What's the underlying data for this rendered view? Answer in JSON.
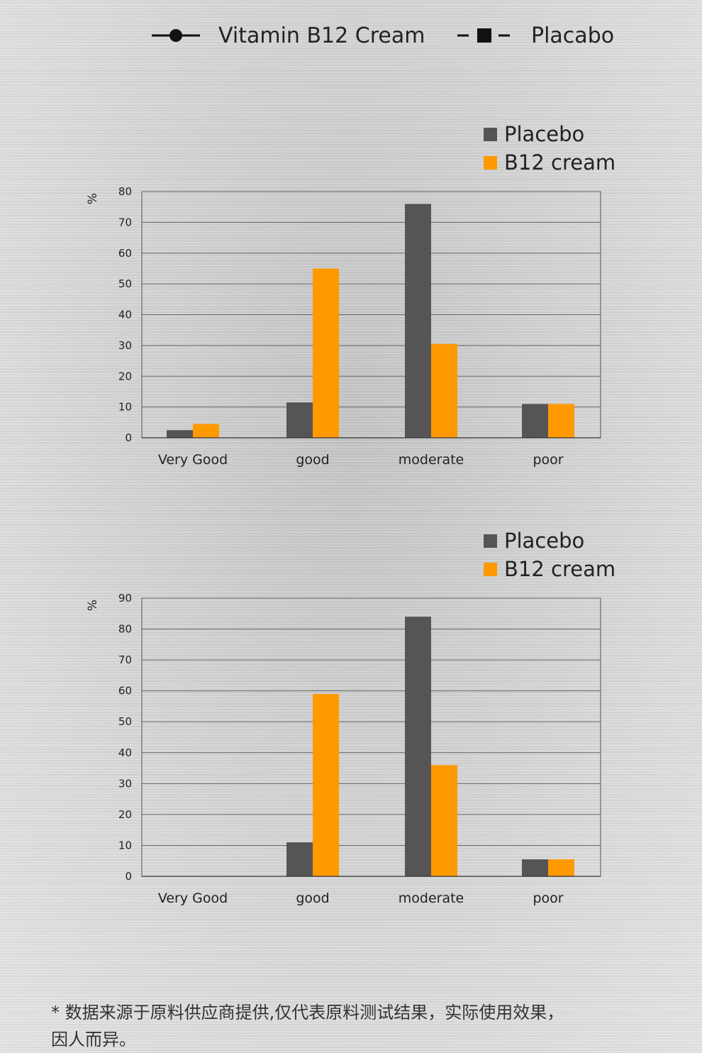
{
  "top_legend": {
    "items": [
      {
        "label": "Vitamin B12 Cream",
        "marker": "circle-line-icon"
      },
      {
        "label": "Placabo",
        "marker": "square-dash-icon"
      }
    ]
  },
  "colors": {
    "placebo": "#555555",
    "b12": "#FF9900"
  },
  "chart_data": [
    {
      "type": "bar",
      "title": "",
      "ylabel": "%",
      "ylim": [
        0,
        80
      ],
      "yticks": [
        0,
        10,
        20,
        30,
        40,
        50,
        60,
        70,
        80
      ],
      "categories": [
        "Very Good",
        "good",
        "moderate",
        "poor"
      ],
      "series": [
        {
          "name": "Placebo",
          "values": [
            2.5,
            11.5,
            76,
            11
          ]
        },
        {
          "name": "B12 cream",
          "values": [
            4.5,
            55,
            30.5,
            11
          ]
        }
      ],
      "grid": true,
      "legend": "top-right"
    },
    {
      "type": "bar",
      "title": "",
      "ylabel": "%",
      "ylim": [
        0,
        90
      ],
      "yticks": [
        0,
        10,
        20,
        30,
        40,
        50,
        60,
        70,
        80,
        90
      ],
      "categories": [
        "Very Good",
        "good",
        "moderate",
        "poor"
      ],
      "series": [
        {
          "name": "Placebo",
          "values": [
            0,
            11,
            84,
            5.5
          ]
        },
        {
          "name": "B12 cream",
          "values": [
            0,
            59,
            36,
            5.5
          ]
        }
      ],
      "grid": true,
      "legend": "top-right"
    }
  ],
  "footnote": {
    "line1": "* 数据来源于原料供应商提供,仅代表原料测试结果，实际使用效果，",
    "line2": "因人而异。"
  }
}
